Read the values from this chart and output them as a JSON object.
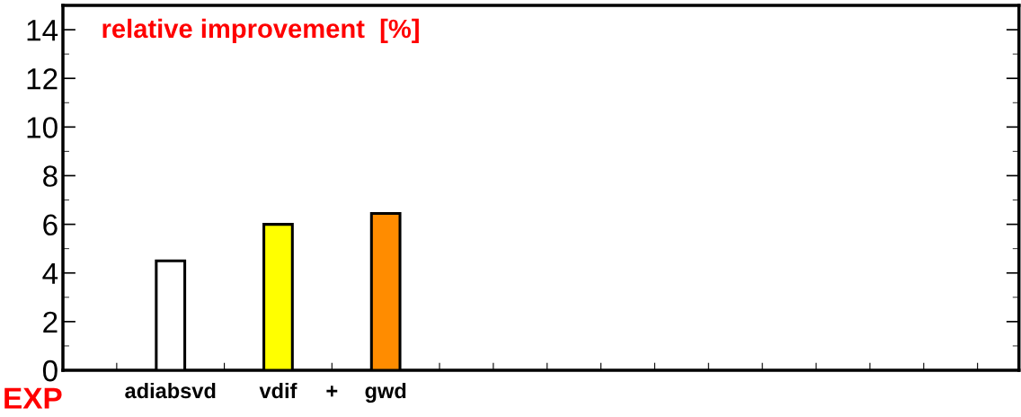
{
  "chart_data": {
    "type": "bar",
    "title": "relative improvement  [%]",
    "xlabel": "EXP",
    "categories": [
      null,
      "adiabsvd",
      null,
      "vdif",
      "+",
      "gwd",
      null,
      null,
      null,
      null,
      null,
      null,
      null,
      null,
      null,
      null,
      null
    ],
    "values": [
      null,
      4.5,
      null,
      6.0,
      null,
      6.45,
      null,
      null,
      null,
      null,
      null,
      null,
      null,
      null,
      null,
      null,
      null
    ],
    "colors": [
      "#ffffff",
      "#ffffff",
      "#ffffff",
      "#ffff00",
      "#ffffff",
      "#ff8c00",
      "#ffffff",
      "#ffffff",
      "#ffffff",
      "#ffffff",
      "#ffffff",
      "#ffffff",
      "#ffffff",
      "#ffffff",
      "#ffffff",
      "#ffffff",
      "#ffffff"
    ],
    "ylim": [
      0,
      15
    ],
    "yticks": [
      0,
      2,
      4,
      6,
      8,
      10,
      12,
      14
    ],
    "grid": false,
    "legend": false
  }
}
